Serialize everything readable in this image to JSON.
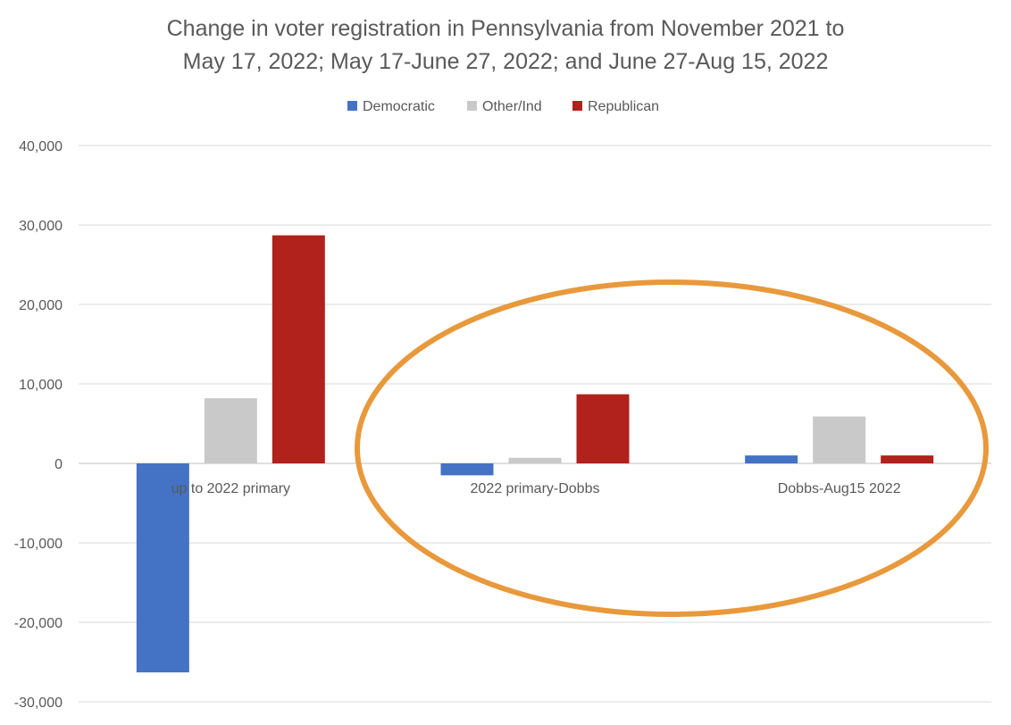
{
  "chart_data": {
    "type": "bar",
    "title": "Change in voter registration in Pennsylvania from November 2021 to May 17, 2022; May 17-June 27, 2022; and June 27-Aug 15, 2022",
    "title_lines": [
      "Change in voter registration in Pennsylvania from November 2021 to",
      "May 17, 2022; May 17-June 27, 2022; and June 27-Aug 15, 2022"
    ],
    "categories": [
      "up to 2022 primary",
      "2022 primary-Dobbs",
      "Dobbs-Aug15 2022"
    ],
    "series": [
      {
        "name": "Democratic",
        "color": "#4472c4",
        "values": [
          -26300,
          -1500,
          1000
        ]
      },
      {
        "name": "Other/Ind",
        "color": "#c9c9c9",
        "values": [
          8200,
          700,
          5900
        ]
      },
      {
        "name": "Republican",
        "color": "#b0221b",
        "values": [
          28700,
          8700,
          1000
        ]
      }
    ],
    "ylim": [
      -30000,
      40000
    ],
    "yticks": [
      40000,
      30000,
      20000,
      10000,
      0,
      -10000,
      -20000,
      -30000
    ],
    "ytick_labels": [
      "40,000",
      "30,000",
      "20,000",
      "10,000",
      "0",
      "-10,000",
      "-20,000",
      "-30,000"
    ],
    "xlabel": "",
    "ylabel": "",
    "grid": true,
    "legend_position": "top",
    "annotation": {
      "shape": "ellipse",
      "color": "#e8993c",
      "encloses": [
        "2022 primary-Dobbs",
        "Dobbs-Aug15 2022"
      ]
    }
  }
}
